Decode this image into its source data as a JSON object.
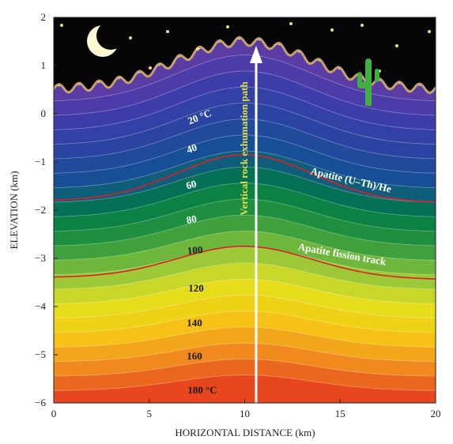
{
  "chart_data": {
    "type": "contour",
    "xlabel": "HORIZONTAL DISTANCE (km)",
    "ylabel": "ELEVATION (km)",
    "xlim": [
      0,
      20
    ],
    "ylim": [
      -6,
      2
    ],
    "xticks": [
      0,
      5,
      10,
      15,
      20
    ],
    "yticks": [
      {
        "value": -6,
        "label": "−6"
      },
      {
        "value": -5,
        "label": "−5"
      },
      {
        "value": -4,
        "label": "−4"
      },
      {
        "value": -3,
        "label": "−3"
      },
      {
        "value": -2,
        "label": "−2"
      },
      {
        "value": -1,
        "label": "−1"
      },
      0,
      1,
      2
    ],
    "isotherms": [
      {
        "value": 20,
        "label": "20 °C"
      },
      40,
      60,
      80,
      100,
      120,
      140,
      160,
      {
        "value": 180,
        "label": "180 °C"
      }
    ],
    "annotations": [
      "Apatite (U–Th)/He",
      "Apatite fission track",
      "Vertical rock exhumation path"
    ]
  }
}
